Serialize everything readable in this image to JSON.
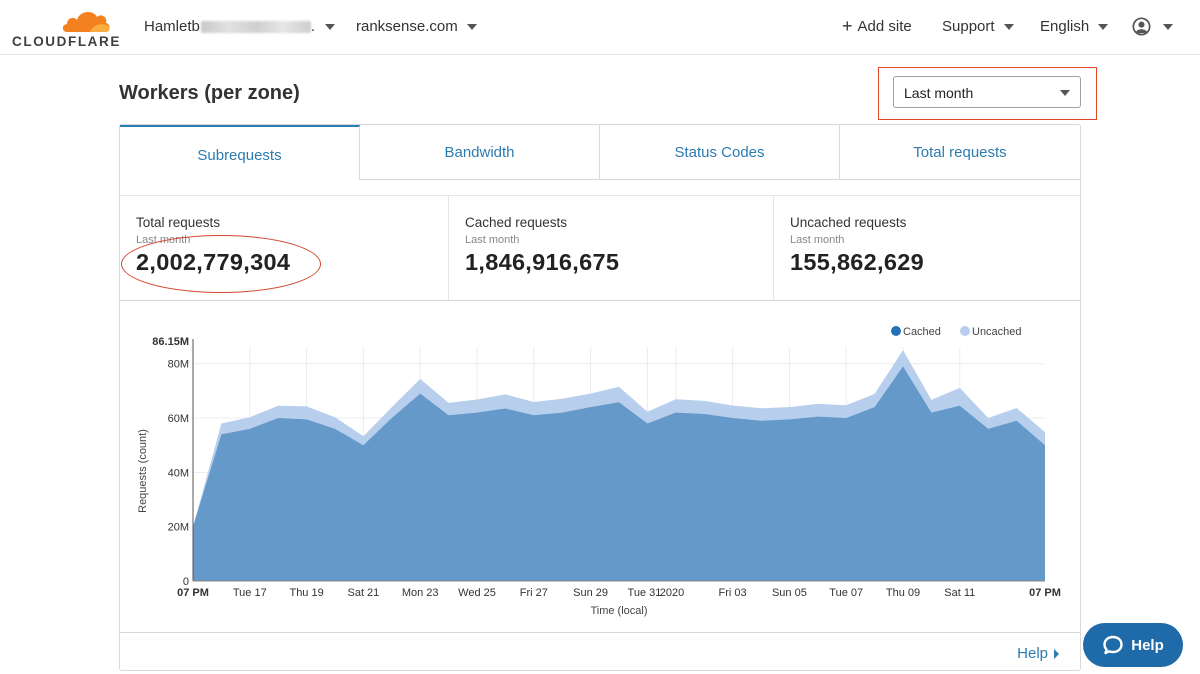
{
  "brand": {
    "name": "CLOUDFLARE",
    "logo_color": "#f48120"
  },
  "nav": {
    "account": "Hamletb",
    "account_suffix": ".",
    "zone": "ranksense.com",
    "add_site": "Add site",
    "support": "Support",
    "language": "English"
  },
  "page": {
    "title": "Workers (per zone)",
    "range": "Last month"
  },
  "tabs": [
    {
      "label": "Subrequests",
      "active": true
    },
    {
      "label": "Bandwidth",
      "active": false
    },
    {
      "label": "Status Codes",
      "active": false
    },
    {
      "label": "Total requests",
      "active": false
    }
  ],
  "stats": [
    {
      "label": "Total requests",
      "period": "Last month",
      "value": "2,002,779,304"
    },
    {
      "label": "Cached requests",
      "period": "Last month",
      "value": "1,846,916,675"
    },
    {
      "label": "Uncached requests",
      "period": "Last month",
      "value": "155,862,629"
    }
  ],
  "colors": {
    "accent": "#2c7cb0",
    "cached": "#6499c9",
    "uncached": "#b7cfed",
    "highlight": "#e2462b"
  },
  "chart_data": {
    "type": "area",
    "stacked": true,
    "xlabel": "Time (local)",
    "ylabel": "Requests (count)",
    "ymax_label": "86.15M",
    "ylim": [
      0,
      86.15
    ],
    "yticks": [
      0,
      20,
      40,
      60,
      80
    ],
    "ytick_labels": [
      "0",
      "20M",
      "40M",
      "60M",
      "80M"
    ],
    "x": [
      0,
      1,
      2,
      3,
      4,
      5,
      6,
      7,
      8,
      9,
      10,
      11,
      12,
      13,
      14,
      15,
      16,
      17,
      18,
      19,
      20,
      21,
      22,
      23,
      24,
      25,
      26,
      27,
      28,
      29,
      30
    ],
    "xticks": [
      {
        "label": "07 PM",
        "i": 0,
        "bold": true
      },
      {
        "label": "Tue 17",
        "i": 2
      },
      {
        "label": "Thu 19",
        "i": 4
      },
      {
        "label": "Sat 21",
        "i": 6
      },
      {
        "label": "Mon 23",
        "i": 8
      },
      {
        "label": "Wed 25",
        "i": 10
      },
      {
        "label": "Fri 27",
        "i": 12
      },
      {
        "label": "Sun 29",
        "i": 14
      },
      {
        "label": "Tue 31",
        "i": 16
      },
      {
        "label": "2020",
        "i": 17
      },
      {
        "label": "Fri 03",
        "i": 19
      },
      {
        "label": "Sun 05",
        "i": 21
      },
      {
        "label": "Tue 07",
        "i": 23
      },
      {
        "label": "Thu 09",
        "i": 25
      },
      {
        "label": "Sat 11",
        "i": 27
      },
      {
        "label": "07 PM",
        "i": 30,
        "bold": true
      }
    ],
    "series": [
      {
        "name": "Cached",
        "values": [
          20,
          54,
          56,
          60,
          59.5,
          56,
          50,
          60,
          69,
          61,
          62,
          63.5,
          61,
          62,
          64,
          65.8,
          58,
          62,
          61.5,
          60,
          59,
          59.5,
          60.5,
          60,
          64,
          79,
          62,
          64.5,
          56,
          59,
          50
        ]
      },
      {
        "name": "Uncached",
        "values": [
          0,
          4,
          4.3,
          4.5,
          4.8,
          4.3,
          3.3,
          4,
          5.4,
          4.6,
          4.8,
          5.2,
          4.9,
          5.1,
          5,
          5.7,
          4.3,
          4.9,
          4.8,
          4.6,
          4.6,
          4.5,
          4.7,
          4.7,
          4.9,
          6,
          4.7,
          6.6,
          4,
          4.7,
          4.8
        ]
      }
    ],
    "legend": [
      "Cached",
      "Uncached"
    ],
    "legend_position": "top-right"
  },
  "footer": {
    "help_link": "Help",
    "help_button": "Help"
  }
}
